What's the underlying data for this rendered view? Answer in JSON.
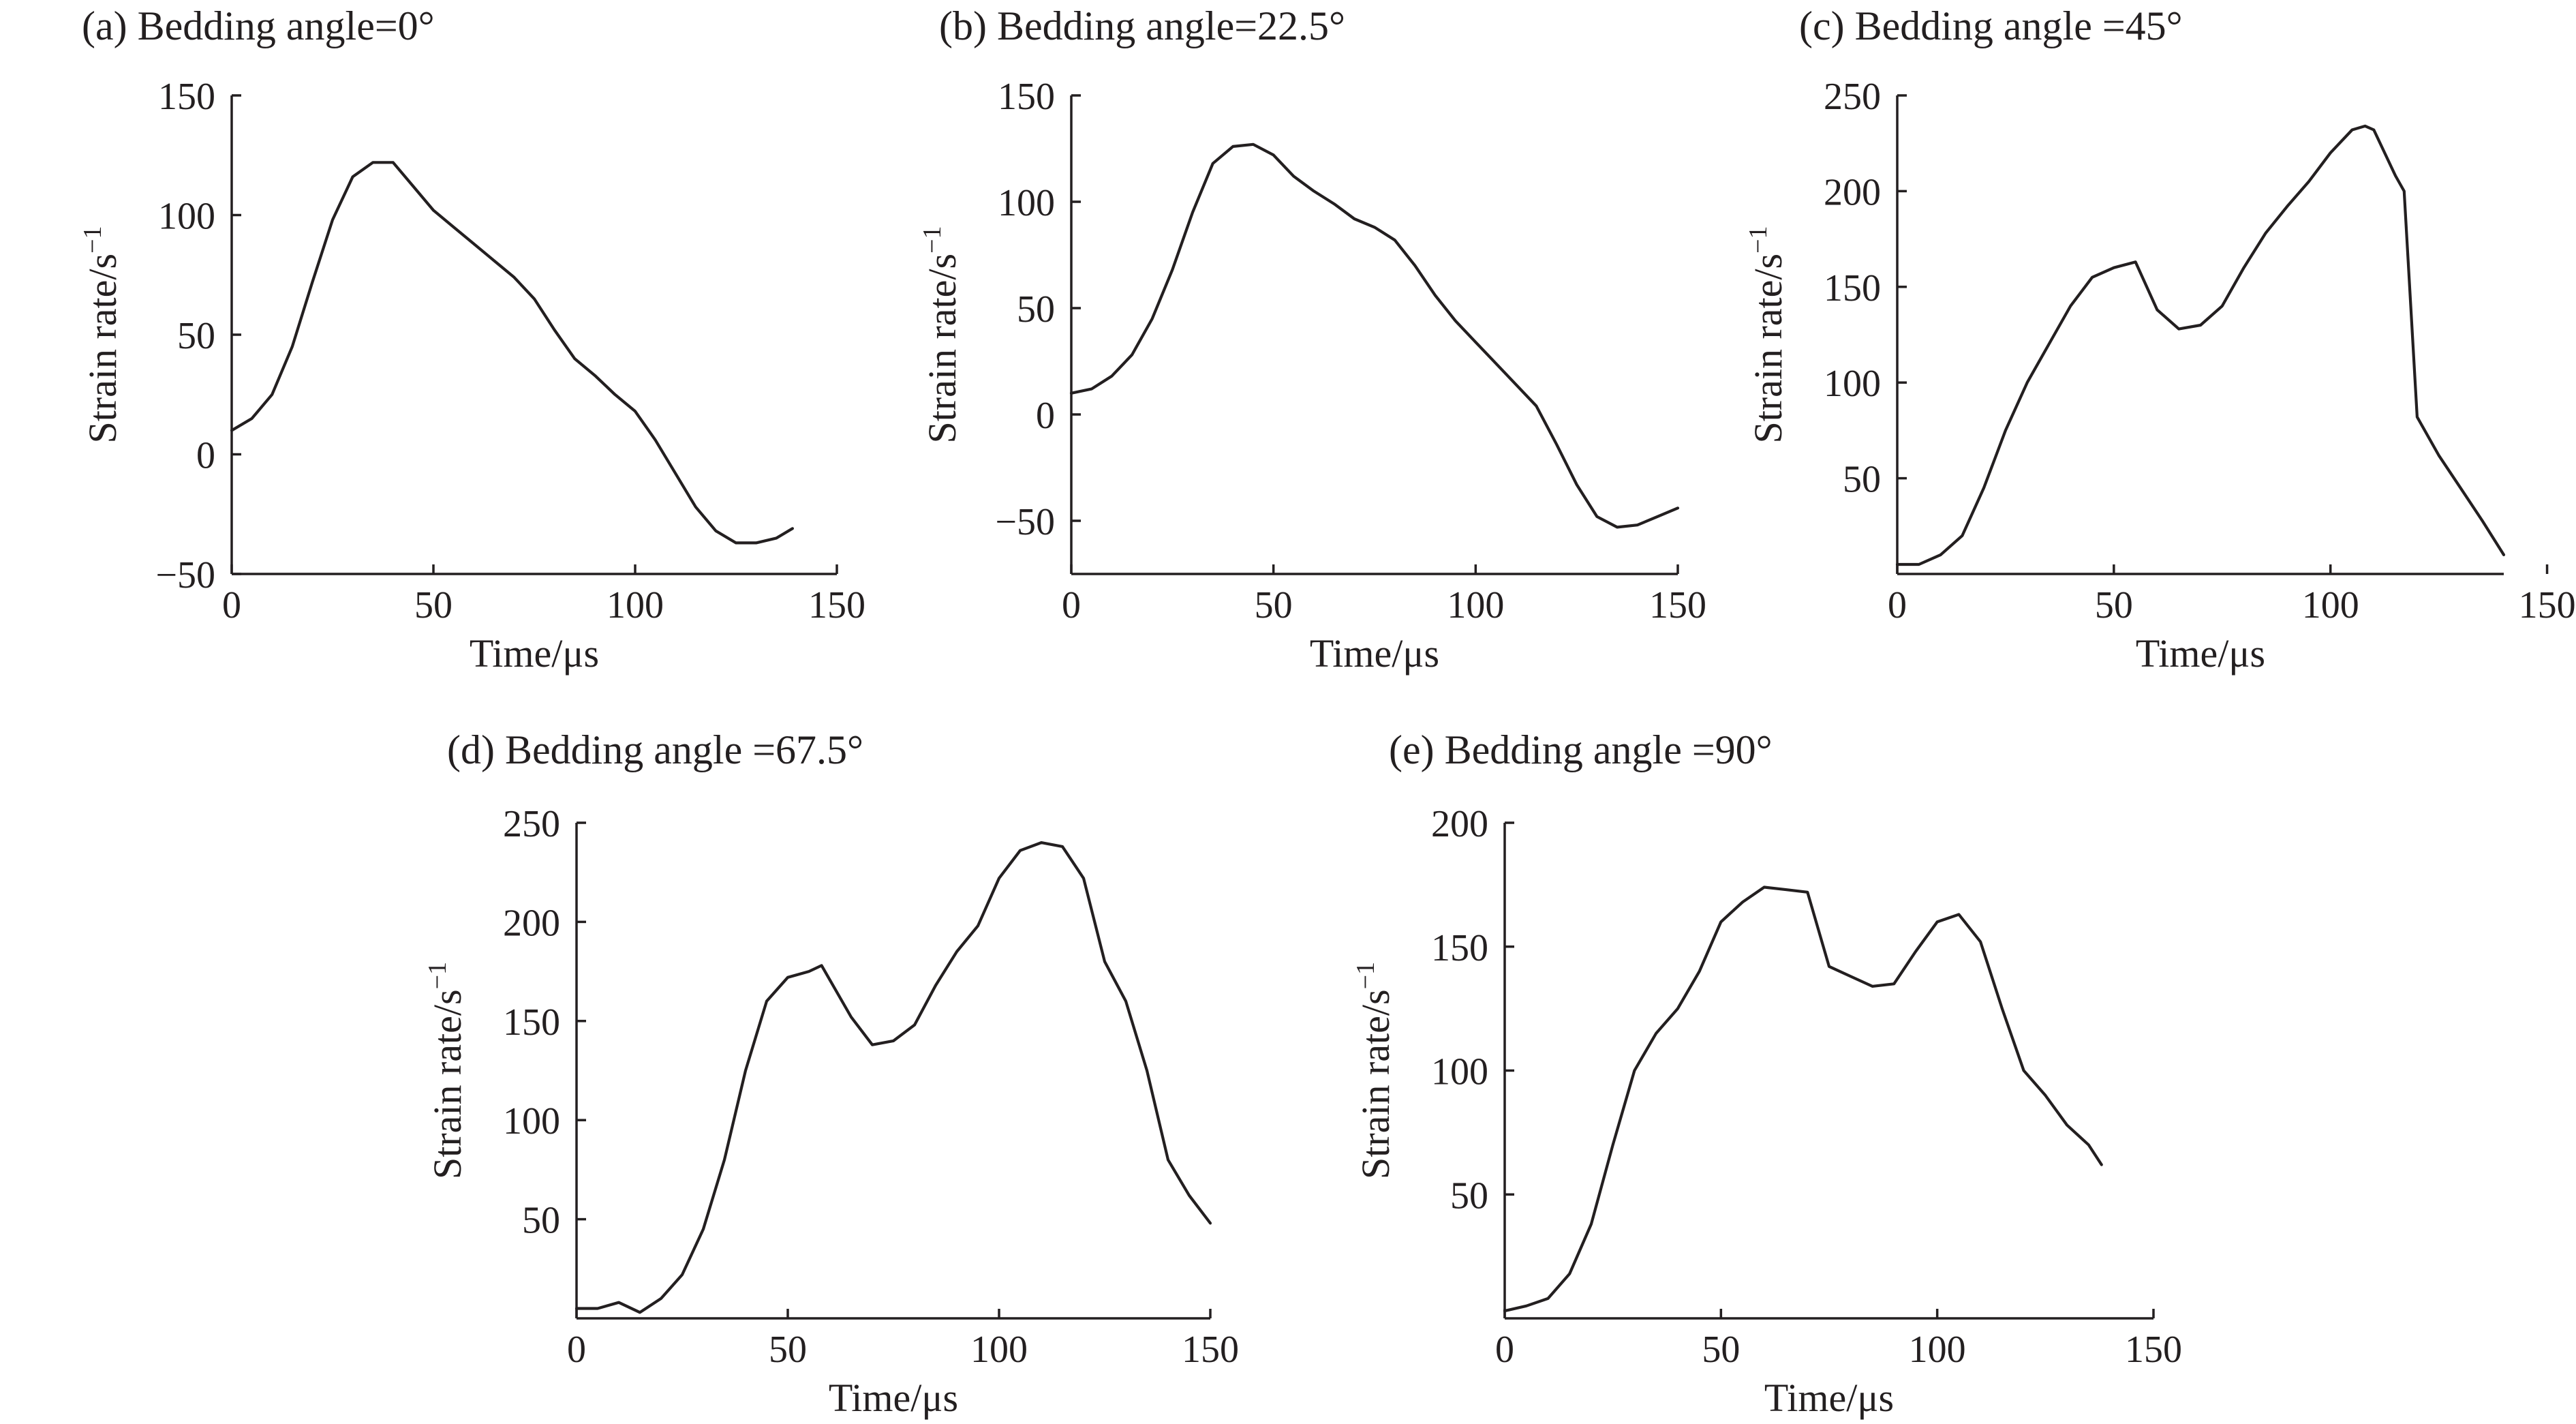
{
  "chart_data": [
    {
      "type": "line",
      "title": "(a) Bedding angle=0°",
      "xlabel": "Time/μs",
      "ylabel": "Strain rate/s",
      "ylabel_superscript": "−1",
      "xlim": [
        0,
        150
      ],
      "ylim": [
        -50,
        150
      ],
      "xticks": [
        0,
        50,
        100,
        150
      ],
      "yticks": [
        -50,
        0,
        50,
        100,
        150
      ],
      "xtick_labels": [
        "0",
        "50",
        "100",
        "150"
      ],
      "ytick_labels": [
        "−50",
        "0",
        "50",
        "100",
        "150"
      ],
      "grid": false,
      "series": [
        {
          "x": [
            0,
            5,
            10,
            15,
            20,
            25,
            30,
            35,
            40,
            45,
            50,
            55,
            60,
            65,
            70,
            75,
            80,
            85,
            90,
            95,
            100,
            105,
            110,
            115,
            120,
            125,
            130,
            135,
            139
          ],
          "y": [
            10,
            15,
            25,
            45,
            72,
            98,
            116,
            122,
            122,
            112,
            102,
            95,
            88,
            81,
            74,
            65,
            52,
            40,
            33,
            25,
            18,
            6,
            -8,
            -22,
            -32,
            -37,
            -37,
            -35,
            -31
          ]
        }
      ]
    },
    {
      "type": "line",
      "title": "(b) Bedding angle=22.5°",
      "xlabel": "Time/μs",
      "ylabel": "Strain rate/s",
      "ylabel_superscript": "−1",
      "xlim": [
        0,
        150
      ],
      "ylim": [
        -75,
        150
      ],
      "xticks": [
        0,
        50,
        100,
        150
      ],
      "yticks": [
        -50,
        0,
        50,
        100,
        150
      ],
      "xtick_labels": [
        "0",
        "50",
        "100",
        "150"
      ],
      "ytick_labels": [
        "−50",
        "0",
        "50",
        "100",
        "150"
      ],
      "grid": false,
      "series": [
        {
          "x": [
            0,
            5,
            10,
            15,
            20,
            25,
            30,
            35,
            40,
            45,
            50,
            55,
            60,
            65,
            70,
            75,
            80,
            85,
            90,
            95,
            100,
            105,
            110,
            115,
            120,
            125,
            130,
            135,
            140,
            145,
            150
          ],
          "y": [
            10,
            12,
            18,
            28,
            45,
            68,
            95,
            118,
            126,
            127,
            122,
            112,
            105,
            99,
            92,
            88,
            82,
            70,
            56,
            44,
            34,
            24,
            14,
            4,
            -14,
            -33,
            -48,
            -53,
            -52,
            -48,
            -44
          ]
        }
      ]
    },
    {
      "type": "line",
      "title": "(c) Bedding angle =45°",
      "xlabel": "Time/μs",
      "ylabel": "Strain rate/s",
      "ylabel_superscript": "−1",
      "xlim": [
        0,
        140
      ],
      "ylim": [
        0,
        250
      ],
      "xticks": [
        0,
        50,
        100,
        150
      ],
      "yticks": [
        50,
        100,
        150,
        200,
        250
      ],
      "xtick_labels": [
        "0",
        "50",
        "100",
        "150"
      ],
      "ytick_labels": [
        "50",
        "100",
        "150",
        "200",
        "250"
      ],
      "grid": false,
      "series": [
        {
          "x": [
            0,
            5,
            10,
            15,
            20,
            25,
            30,
            35,
            40,
            45,
            50,
            55,
            60,
            65,
            70,
            75,
            80,
            85,
            90,
            95,
            100,
            105,
            108,
            110,
            115,
            117,
            120,
            125,
            130,
            135,
            140
          ],
          "y": [
            5,
            5,
            10,
            20,
            45,
            75,
            100,
            120,
            140,
            155,
            160,
            163,
            138,
            128,
            130,
            140,
            160,
            178,
            192,
            205,
            220,
            232,
            234,
            232,
            208,
            200,
            82,
            62,
            45,
            28,
            10
          ]
        }
      ]
    },
    {
      "type": "line",
      "title": "(d) Bedding angle =67.5°",
      "xlabel": "Time/μs",
      "ylabel": "Strain rate/s",
      "ylabel_superscript": "−1",
      "xlim": [
        0,
        150
      ],
      "ylim": [
        0,
        250
      ],
      "xticks": [
        0,
        50,
        100,
        150
      ],
      "yticks": [
        50,
        100,
        150,
        200,
        250
      ],
      "xtick_labels": [
        "0",
        "50",
        "100",
        "150"
      ],
      "ytick_labels": [
        "50",
        "100",
        "150",
        "200",
        "250"
      ],
      "grid": false,
      "series": [
        {
          "x": [
            0,
            5,
            10,
            15,
            20,
            25,
            30,
            35,
            40,
            45,
            50,
            55,
            58,
            65,
            70,
            75,
            80,
            85,
            90,
            95,
            100,
            105,
            110,
            115,
            120,
            125,
            130,
            135,
            140,
            145,
            150
          ],
          "y": [
            5,
            5,
            8,
            3,
            10,
            22,
            45,
            80,
            125,
            160,
            172,
            175,
            178,
            152,
            138,
            140,
            148,
            168,
            185,
            198,
            222,
            236,
            240,
            238,
            222,
            180,
            160,
            125,
            80,
            62,
            48
          ]
        }
      ]
    },
    {
      "type": "line",
      "title": "(e) Bedding angle =90°",
      "xlabel": "Time/μs",
      "ylabel": "Strain rate/s",
      "ylabel_superscript": "−1",
      "xlim": [
        0,
        150
      ],
      "ylim": [
        0,
        200
      ],
      "xticks": [
        0,
        50,
        100,
        150
      ],
      "yticks": [
        50,
        100,
        150,
        200
      ],
      "xtick_labels": [
        "0",
        "50",
        "100",
        "150"
      ],
      "ytick_labels": [
        "50",
        "100",
        "150",
        "200"
      ],
      "grid": false,
      "series": [
        {
          "x": [
            0,
            5,
            10,
            15,
            20,
            25,
            30,
            35,
            40,
            45,
            50,
            55,
            60,
            65,
            70,
            75,
            80,
            85,
            90,
            95,
            100,
            105,
            110,
            115,
            120,
            125,
            130,
            135,
            138
          ],
          "y": [
            3,
            5,
            8,
            18,
            38,
            70,
            100,
            115,
            125,
            140,
            160,
            168,
            174,
            173,
            172,
            142,
            138,
            134,
            135,
            148,
            160,
            163,
            152,
            125,
            100,
            90,
            78,
            70,
            62
          ]
        }
      ]
    }
  ]
}
